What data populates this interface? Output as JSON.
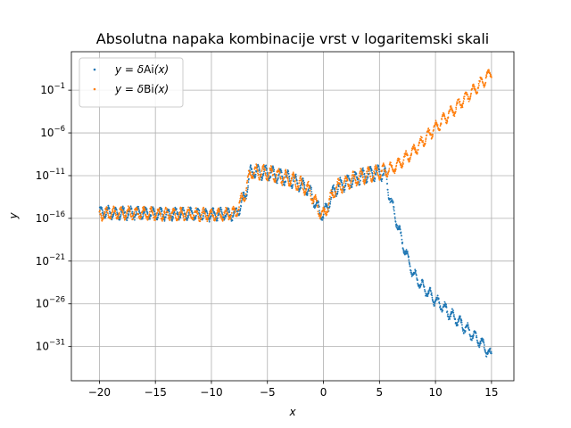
{
  "chart_data": {
    "type": "scatter",
    "title": "Absolutna napaka kombinacije vrst v logaritemski skali",
    "xlabel": "x",
    "ylabel": "y",
    "xlim": [
      -22.5,
      17.0
    ],
    "ylim_log10": [
      -35.0,
      3.5
    ],
    "yscale": "log",
    "grid": true,
    "legend_position": "top-left",
    "x_ticks": [
      {
        "value": -20,
        "label": "−20"
      },
      {
        "value": -15,
        "label": "−15"
      },
      {
        "value": -10,
        "label": "−10"
      },
      {
        "value": -5,
        "label": "−5"
      },
      {
        "value": 0,
        "label": "0"
      },
      {
        "value": 5,
        "label": "5"
      },
      {
        "value": 10,
        "label": "10"
      },
      {
        "value": 15,
        "label": "15"
      }
    ],
    "y_ticks": [
      {
        "value": -31,
        "base": "10",
        "exp": "−31"
      },
      {
        "value": -26,
        "base": "10",
        "exp": "−26"
      },
      {
        "value": -21,
        "base": "10",
        "exp": "−21"
      },
      {
        "value": -16,
        "base": "10",
        "exp": "−16"
      },
      {
        "value": -11,
        "base": "10",
        "exp": "−11"
      },
      {
        "value": -6,
        "base": "10",
        "exp": "−6"
      },
      {
        "value": -1,
        "base": "10",
        "exp": "−1"
      }
    ],
    "series": [
      {
        "name": "y = δAi(x)",
        "legend_prefix": "y = δ",
        "legend_func": "Ai",
        "legend_arg": "(x)",
        "color": "#1f77b4",
        "x": [
          -20,
          -18,
          -16,
          -14,
          -12,
          -10,
          -8.5,
          -7.8,
          -7.0,
          -6.5,
          -5,
          -3,
          -1.5,
          -1,
          -0.5,
          0,
          0.5,
          1,
          2,
          3,
          4,
          5,
          5.5,
          6,
          7,
          8,
          9,
          10,
          12,
          14,
          15
        ],
        "log10_y": [
          -15.3,
          -15.4,
          -15.4,
          -15.5,
          -15.5,
          -15.6,
          -15.5,
          -15.5,
          -13.5,
          -10.5,
          -10.7,
          -11.4,
          -12.4,
          -13.3,
          -14.8,
          -15.7,
          -14.2,
          -12.6,
          -11.8,
          -11.3,
          -10.9,
          -10.6,
          -10.8,
          -13.8,
          -18.6,
          -22.5,
          -24.2,
          -25.6,
          -28.0,
          -30.4,
          -32.2
        ]
      },
      {
        "name": "y = δBi(x)",
        "legend_prefix": "y = δ",
        "legend_func": "Bi",
        "legend_arg": "(x)",
        "color": "#ff7f0e",
        "x": [
          -20,
          -18,
          -16,
          -14,
          -12,
          -10,
          -8.5,
          -7.8,
          -7.0,
          -6.5,
          -5,
          -3,
          -1.5,
          -1,
          -0.5,
          0,
          0.5,
          1,
          2,
          3,
          4,
          5,
          5.5,
          6,
          7,
          8,
          9,
          10,
          12,
          14,
          15
        ],
        "log10_y": [
          -15.5,
          -15.4,
          -15.4,
          -15.5,
          -15.5,
          -15.6,
          -15.5,
          -15.3,
          -13.0,
          -10.5,
          -10.7,
          -11.4,
          -12.4,
          -13.3,
          -14.8,
          -15.7,
          -14.2,
          -12.6,
          -11.8,
          -11.3,
          -10.9,
          -10.6,
          -10.5,
          -10.3,
          -9.3,
          -8.2,
          -6.8,
          -5.4,
          -2.8,
          -0.3,
          1.1
        ]
      }
    ]
  }
}
